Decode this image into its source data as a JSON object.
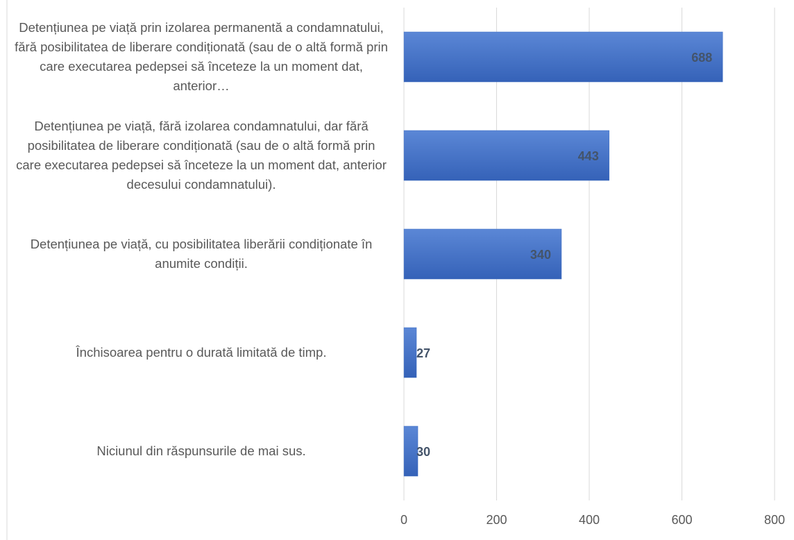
{
  "chart_data": {
    "type": "hbar",
    "categories": [
      "Detențiunea pe viață prin izolarea permanentă a condamnatului, fără posibilitatea de liberare condiționată (sau de o altă formă prin care executarea pedepsei să înceteze la un moment dat, anterior…",
      "Detențiunea pe viață, fără izolarea condamnatului, dar fără posibilitatea de liberare condiționată (sau de o altă formă prin care executarea pedepsei să înceteze la un moment dat, anterior decesului condamnatului).",
      "Detențiunea pe viață, cu posibilitatea liberării condiționate în anumite condiții.",
      "Închisoarea pentru o durată limitată de timp.",
      "Niciunul din răspunsurile de mai sus."
    ],
    "values": [
      688,
      443,
      340,
      27,
      30
    ],
    "color": "#4472c4",
    "xlim": [
      0,
      800
    ],
    "xticks": [
      0,
      200,
      400,
      600,
      800
    ],
    "grid": true
  }
}
